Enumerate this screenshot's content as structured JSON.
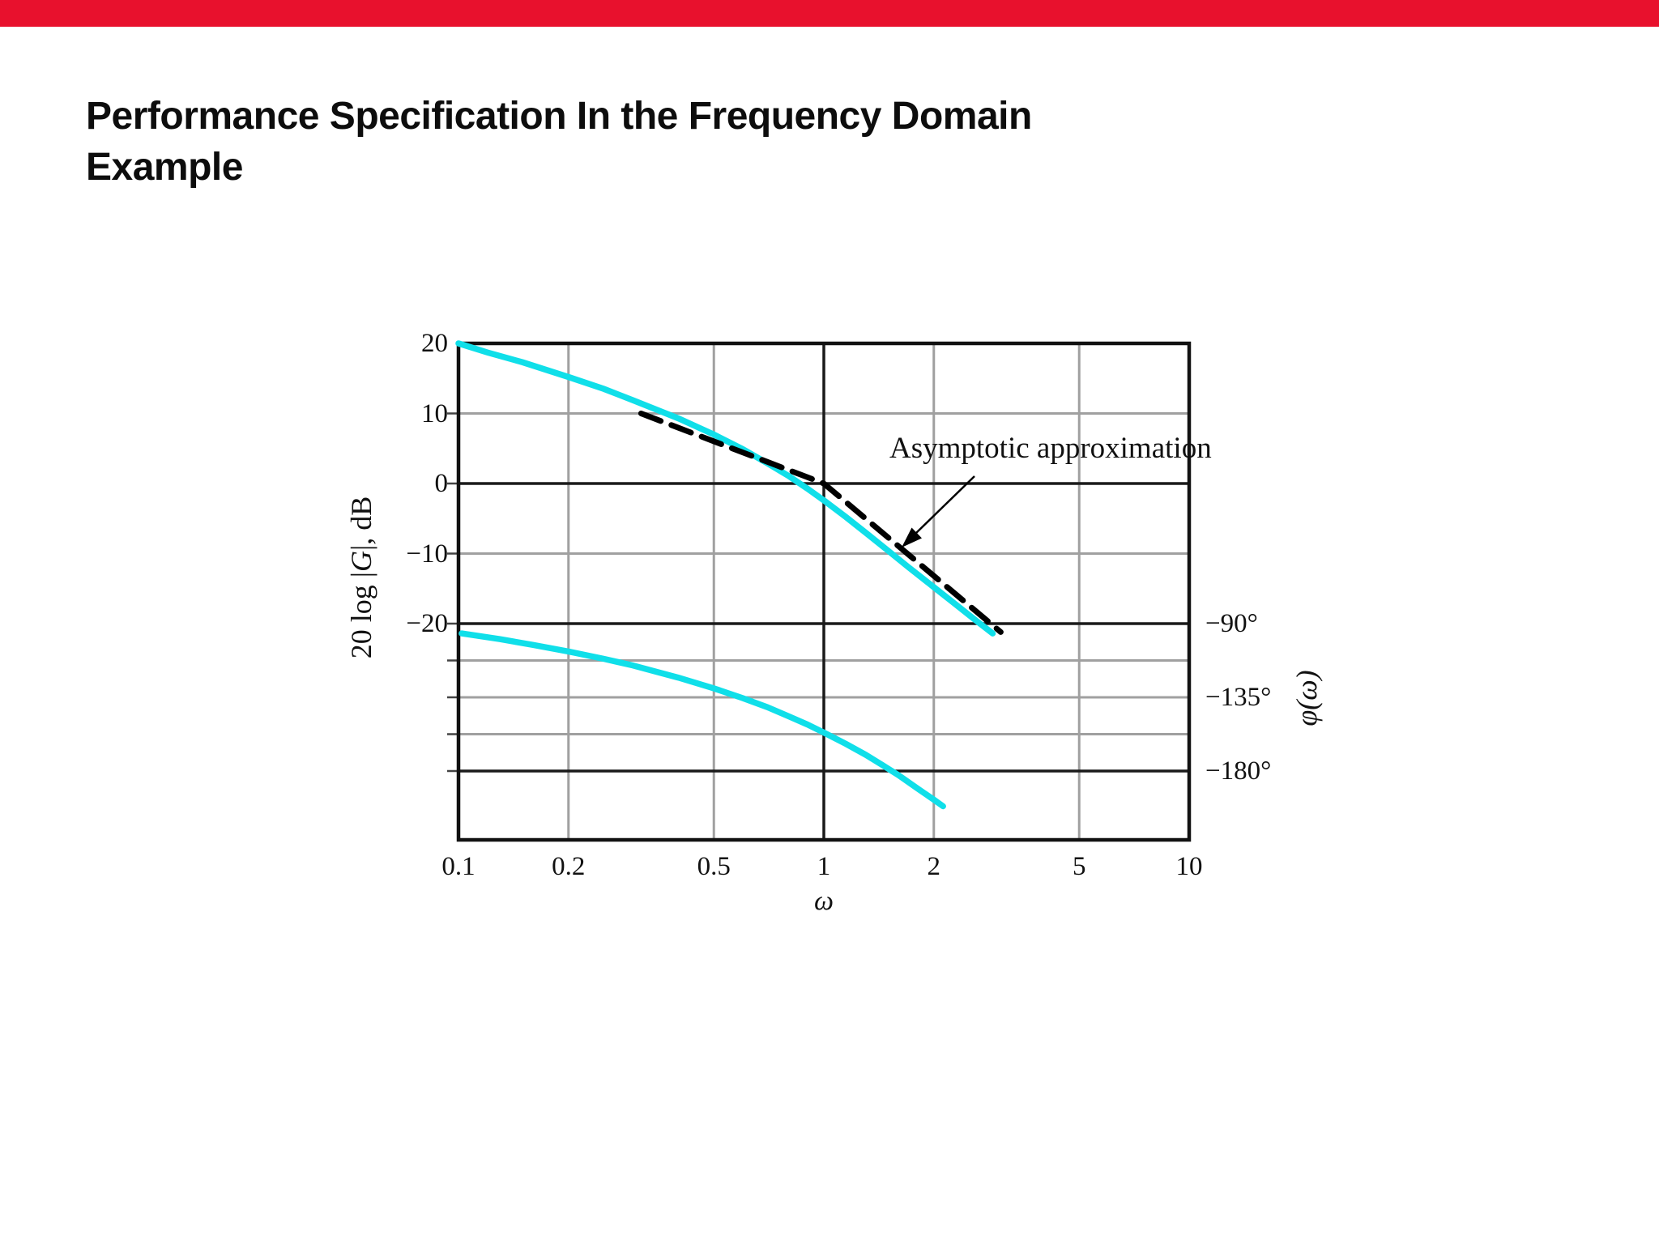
{
  "slide": {
    "title_line1": "Performance Specification In the Frequency Domain",
    "title_line2": "Example",
    "accent_color": "#E8112D"
  },
  "chart_data": {
    "type": "line",
    "title": "",
    "x_axis": {
      "label": "ω",
      "scale": "log",
      "range": [
        0.1,
        10
      ],
      "ticks": [
        0.1,
        0.2,
        0.5,
        1,
        2,
        5,
        10
      ],
      "tick_labels": [
        "0.1",
        "0.2",
        "0.5",
        "1",
        "2",
        "5",
        "10"
      ]
    },
    "y_axis_left": {
      "label": "20 log |G|, dB",
      "label_parts": {
        "prefix": "20 log |",
        "symbol": "G",
        "suffix": "|, dB"
      },
      "ticks": [
        20,
        10,
        0,
        -10,
        -20
      ],
      "tick_labels": [
        "20",
        "10",
        "0",
        "−10",
        "−20"
      ],
      "range": [
        20,
        -20
      ]
    },
    "y_axis_right": {
      "label": "φ(ω)",
      "ticks": [
        -90,
        -135,
        -180
      ],
      "tick_labels": [
        "−90°",
        "−135°",
        "−180°"
      ]
    },
    "grid": {
      "v_gray": [
        0.2,
        0.5,
        2,
        5
      ],
      "v_black": [
        1
      ],
      "h_gray_db": [
        10,
        -10
      ],
      "h_black_db": [
        0,
        -20
      ],
      "h_gray_deg": [
        -112.5,
        -135,
        -157.5
      ],
      "h_black_deg": [
        -180
      ],
      "gray_color": "#a0a0a0",
      "black_color": "#1a1a1a"
    },
    "annotation": {
      "text": "Asymptotic approximation"
    },
    "series": [
      {
        "name": "magnitude",
        "color": "#10DFE9",
        "style": "solid",
        "axis": "dB",
        "points": [
          [
            0.1,
            20
          ],
          [
            0.12,
            18.7
          ],
          [
            0.15,
            17.3
          ],
          [
            0.2,
            15.2
          ],
          [
            0.25,
            13.5
          ],
          [
            0.3,
            11.9
          ],
          [
            0.4,
            9.3
          ],
          [
            0.5,
            7.0
          ],
          [
            0.6,
            4.9
          ],
          [
            0.7,
            2.9
          ],
          [
            0.8,
            1.1
          ],
          [
            0.9,
            -0.7
          ],
          [
            1.0,
            -2.4
          ],
          [
            1.15,
            -4.8
          ],
          [
            1.3,
            -7.0
          ],
          [
            1.5,
            -9.6
          ],
          [
            1.7,
            -11.9
          ],
          [
            2.0,
            -14.8
          ],
          [
            2.3,
            -17.3
          ],
          [
            2.6,
            -19.5
          ],
          [
            2.9,
            -21.4
          ]
        ]
      },
      {
        "name": "asymptotic-approximation",
        "color": "#000000",
        "style": "dashed",
        "axis": "dB",
        "points": [
          [
            0.316,
            10
          ],
          [
            1,
            0
          ],
          [
            3.05,
            -21.2
          ]
        ]
      },
      {
        "name": "phase",
        "color": "#10DFE9",
        "style": "solid",
        "axis": "deg",
        "points": [
          [
            0.102,
            -96
          ],
          [
            0.13,
            -99.5
          ],
          [
            0.16,
            -103
          ],
          [
            0.2,
            -107
          ],
          [
            0.25,
            -111.5
          ],
          [
            0.3,
            -115.5
          ],
          [
            0.35,
            -119.5
          ],
          [
            0.4,
            -123
          ],
          [
            0.5,
            -129.5
          ],
          [
            0.6,
            -135.5
          ],
          [
            0.7,
            -141
          ],
          [
            0.8,
            -146.5
          ],
          [
            0.9,
            -151.5
          ],
          [
            1.0,
            -156.5
          ],
          [
            1.15,
            -163.5
          ],
          [
            1.3,
            -170
          ],
          [
            1.45,
            -176.5
          ],
          [
            1.6,
            -182.5
          ],
          [
            1.8,
            -190.5
          ],
          [
            2.0,
            -197.5
          ],
          [
            2.12,
            -201.5
          ]
        ]
      }
    ]
  }
}
